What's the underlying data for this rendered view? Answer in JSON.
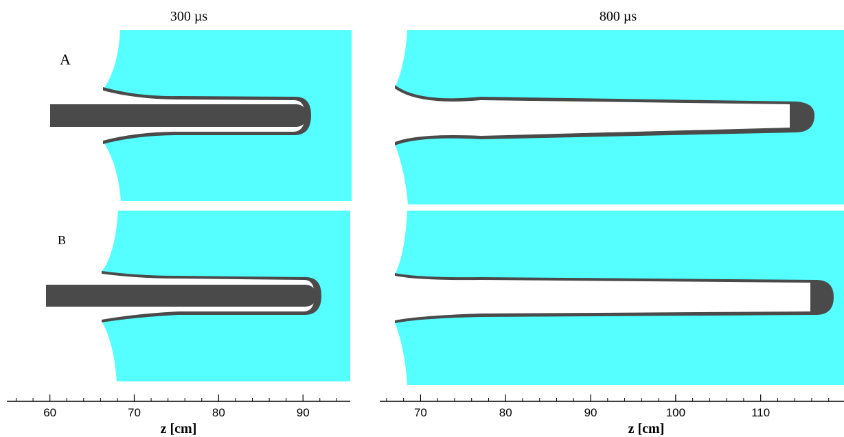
{
  "figure": {
    "column_titles": [
      "300 µs",
      "800 µs"
    ],
    "row_labels": [
      "A",
      "B"
    ],
    "axes": [
      {
        "xlim": [
          54.9,
          95.6
        ],
        "xticks": [
          60,
          70,
          80,
          90
        ],
        "xminor": [
          56,
          58,
          62,
          64,
          66,
          68,
          72,
          74,
          76,
          78,
          82,
          84,
          86,
          88,
          92,
          94
        ],
        "xlabel": "z [cm]"
      },
      {
        "xlim": [
          65.2,
          119.8
        ],
        "xticks": [
          70,
          80,
          90,
          100,
          110
        ],
        "xminor": [
          66,
          68,
          72,
          74,
          76,
          78,
          82,
          84,
          86,
          88,
          92,
          94,
          96,
          98,
          102,
          104,
          106,
          108,
          112,
          114,
          116,
          118
        ],
        "xlabel": "z [cm]"
      }
    ]
  }
}
